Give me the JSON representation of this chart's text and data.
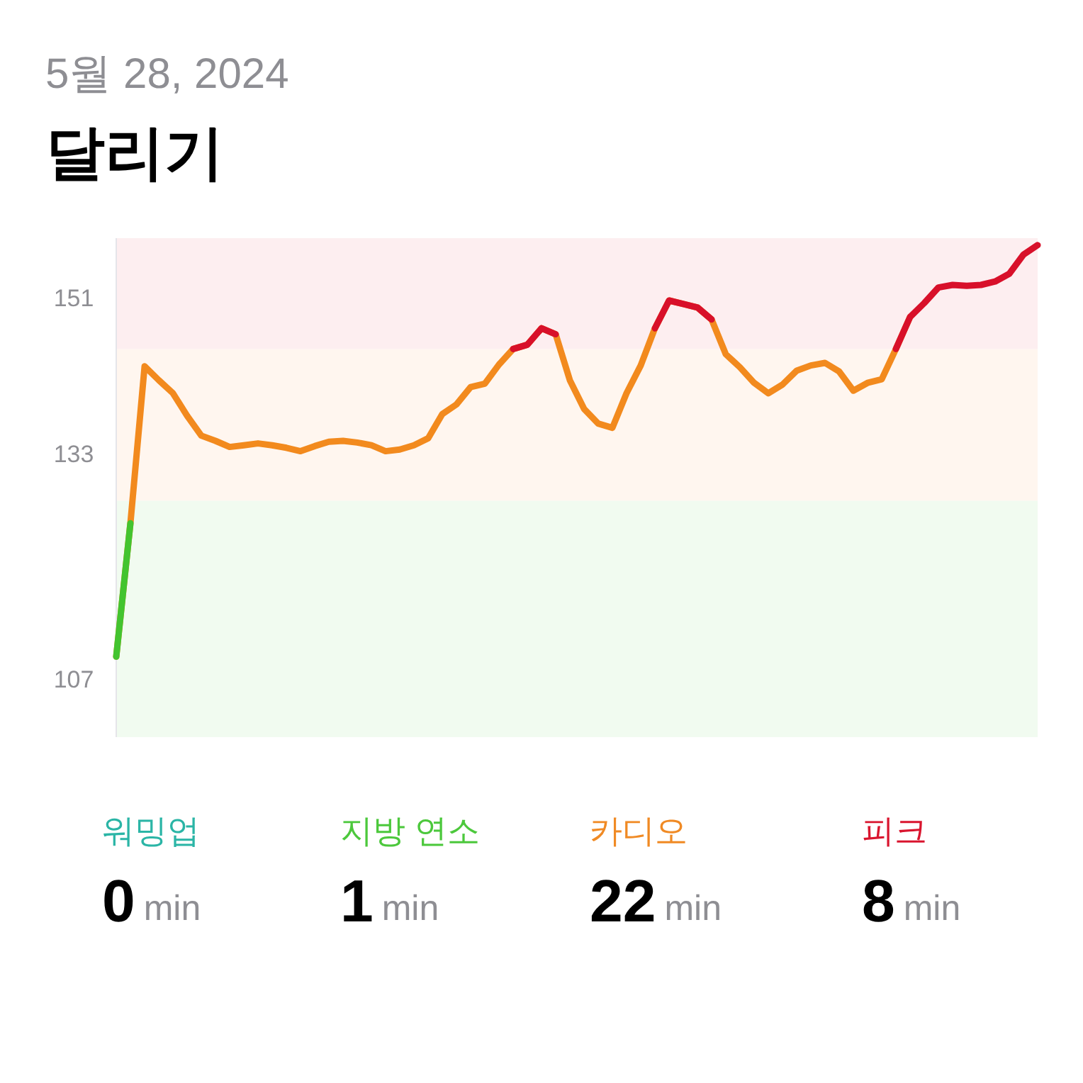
{
  "chart_data": [
    {
      "type": "line",
      "subtitle": "5월 28, 2024",
      "title": "달리기",
      "categories": [
        null,
        null,
        null,
        null,
        null,
        null,
        null,
        null,
        null,
        null,
        null,
        null,
        null,
        null,
        null,
        null,
        null,
        null,
        null,
        null,
        null,
        null,
        null,
        null,
        null,
        null,
        null,
        null,
        null,
        null,
        null,
        null,
        null,
        null,
        null,
        null,
        null,
        null,
        null,
        null,
        null,
        null,
        null,
        null,
        null,
        null,
        null,
        null,
        null,
        null,
        null,
        null,
        null,
        null,
        null,
        null,
        null,
        null,
        null,
        null,
        null,
        null,
        null,
        null,
        null,
        null
      ],
      "series": [
        {
          "values": [
            109.6,
            125.0,
            143.1,
            141.5,
            140.0,
            137.4,
            135.1,
            134.5,
            133.8,
            134.0,
            134.2,
            134.0,
            133.7,
            133.3,
            133.9,
            134.4,
            134.5,
            134.3,
            134.0,
            133.3,
            133.5,
            134.0,
            134.8,
            137.6,
            138.7,
            140.7,
            141.1,
            143.3,
            145.1,
            145.6,
            147.5,
            146.8,
            141.5,
            138.2,
            136.5,
            136.0,
            140.0,
            143.2,
            147.5,
            150.7,
            150.3,
            149.9,
            148.5,
            144.5,
            143.0,
            141.2,
            140.0,
            141.0,
            142.6,
            143.2,
            143.5,
            142.5,
            140.3,
            141.2,
            141.6,
            145.1,
            148.8,
            null,
            null,
            null,
            null,
            null,
            null,
            null,
            null,
            null
          ],
          "color": "#f28a1e"
        },
        {
          "color": "#43c42f",
          "values": [
            109.6,
            125.0,
            null,
            null,
            null,
            null,
            null,
            null,
            null,
            null,
            null,
            null,
            null,
            null,
            null,
            null,
            null,
            null,
            null,
            null,
            null,
            null,
            null,
            null,
            null,
            null,
            null,
            null,
            null,
            null,
            null,
            null,
            null,
            null,
            null,
            null,
            null,
            null,
            null,
            null,
            null,
            null,
            null,
            null,
            null,
            null,
            null,
            null,
            null,
            null,
            null,
            null,
            null,
            null,
            null,
            null,
            null,
            null,
            null,
            null,
            null,
            null,
            null,
            null,
            null,
            null
          ]
        },
        {
          "color": "#d8102a",
          "values": [
            null,
            null,
            null,
            null,
            null,
            null,
            null,
            null,
            null,
            null,
            null,
            null,
            null,
            null,
            null,
            null,
            null,
            null,
            null,
            null,
            null,
            null,
            null,
            null,
            null,
            null,
            null,
            null,
            145.1,
            145.6,
            147.5,
            146.8,
            null,
            null,
            null,
            null,
            null,
            null,
            147.5,
            150.7,
            150.3,
            149.9,
            148.5,
            null,
            null,
            null,
            null,
            null,
            null,
            null,
            null,
            null,
            null,
            null,
            null,
            145.1,
            148.8,
            150.4,
            152.2,
            152.5,
            152.4,
            152.5,
            152.9,
            153.8,
            156.0,
            157.1
          ]
        }
      ],
      "ylim": [
        100.3,
        157.9
      ],
      "yticks": [
        107,
        133,
        151
      ],
      "tick_labels": "y",
      "grid": false,
      "bands": [
        {
          "axis": "y",
          "from": 100.3,
          "to": 127.6,
          "color": "#f1fbf0"
        },
        {
          "axis": "y",
          "from": 127.6,
          "to": 145.1,
          "color": "#fff6ef"
        },
        {
          "axis": "y",
          "from": 145.1,
          "to": 157.9,
          "color": "#fdeef0"
        }
      ]
    },
    {
      "type": "other",
      "categories": [
        "워밍업",
        "지방 연소",
        "카디오",
        "피크"
      ],
      "values": [
        0,
        1,
        22,
        8
      ],
      "data_labels": true,
      "colors": [
        "#2bb5a6",
        "#4cc83c",
        "#f08a24",
        "#d9152e"
      ],
      "annotations": [
        "min"
      ]
    }
  ]
}
